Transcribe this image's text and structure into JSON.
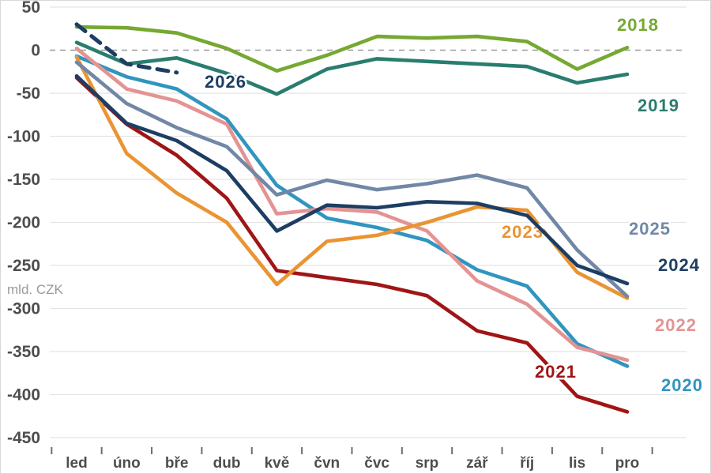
{
  "chart_data": {
    "type": "line",
    "title": "",
    "unit_label": "mld. CZK",
    "categories": [
      "led",
      "úno",
      "bře",
      "dub",
      "kvě",
      "čvn",
      "čvc",
      "srp",
      "zář",
      "říj",
      "lis",
      "pro"
    ],
    "ylim": [
      -450,
      50
    ],
    "ytick_step": 50,
    "yticks": [
      50,
      0,
      -50,
      -100,
      -150,
      -200,
      -250,
      -300,
      -350,
      -400,
      -450
    ],
    "grid": "horizontal light gray, zero line dashed",
    "legend_position": "inline labels next to lines",
    "axis_label_color": "#4d4d4d",
    "grid_color": "#e4e4e4",
    "zero_line_color": "#9b9b9b",
    "unit_label_color": "#9a9a9a",
    "series": [
      {
        "name": "2021",
        "color": "#a01515",
        "dashed": false,
        "values": [
          -32,
          -86,
          -122,
          -172,
          -256,
          -264,
          -272,
          -285,
          -326,
          -340,
          -402,
          -420
        ],
        "label_pos": [
          676,
          477
        ]
      },
      {
        "name": "2020",
        "color": "#3095bf",
        "dashed": false,
        "values": [
          -7,
          -31,
          -45,
          -80,
          -157,
          -195,
          -206,
          -221,
          -255,
          -274,
          -341,
          -367
        ],
        "label_pos": [
          836,
          494
        ]
      },
      {
        "name": "2022",
        "color": "#e49393",
        "dashed": false,
        "values": [
          2,
          -45,
          -59,
          -86,
          -190,
          -184,
          -188,
          -210,
          -268,
          -295,
          -345,
          -360
        ],
        "label_pos": [
          828,
          418
        ]
      },
      {
        "name": "2023",
        "color": "#ea9432",
        "dashed": false,
        "values": [
          -8,
          -120,
          -166,
          -200,
          -272,
          -222,
          -215,
          -200,
          -182,
          -186,
          -258,
          -288
        ],
        "label_pos": [
          634,
          300
        ]
      },
      {
        "name": "2025",
        "color": "#7187a6",
        "dashed": false,
        "values": [
          -14,
          -62,
          -90,
          -112,
          -168,
          -151,
          -162,
          -155,
          -145,
          -160,
          -232,
          -286
        ],
        "label_pos": [
          795,
          296
        ]
      },
      {
        "name": "2024",
        "color": "#1d3d63",
        "dashed": false,
        "values": [
          -30,
          -85,
          -105,
          -140,
          -210,
          -180,
          -183,
          -176,
          -178,
          -192,
          -250,
          -271
        ],
        "label_pos": [
          832,
          342
        ]
      },
      {
        "name": "2019",
        "color": "#2a7d6e",
        "dashed": false,
        "values": [
          9,
          -16,
          -9,
          -27,
          -51,
          -22,
          -10,
          -13,
          -16,
          -19,
          -38,
          -28
        ],
        "label_pos": [
          806,
          140
        ]
      },
      {
        "name": "2018",
        "color": "#76a832",
        "dashed": false,
        "values": [
          27,
          26,
          20,
          2,
          -24,
          -6,
          16,
          14,
          16,
          10,
          -22,
          3
        ],
        "label_pos": [
          780,
          38
        ]
      },
      {
        "name": "2026",
        "color": "#1d3d63",
        "dashed": true,
        "values": [
          30,
          -16,
          -26
        ],
        "label_pos": [
          258,
          110
        ]
      }
    ]
  }
}
